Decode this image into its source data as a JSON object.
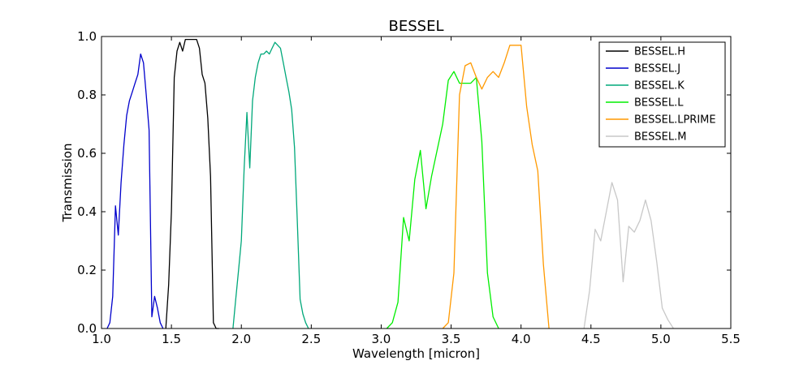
{
  "chart_data": {
    "type": "line",
    "title": "BESSEL",
    "xlabel": "Wavelength [micron]",
    "ylabel": "Transmission",
    "xlim": [
      1.0,
      5.5
    ],
    "ylim": [
      0.0,
      1.0
    ],
    "xticks": [
      1.0,
      1.5,
      2.0,
      2.5,
      3.0,
      3.5,
      4.0,
      4.5,
      5.0,
      5.5
    ],
    "xtick_labels": [
      "1.0",
      "1.5",
      "2.0",
      "2.5",
      "3.0",
      "3.5",
      "4.0",
      "4.5",
      "5.0",
      "5.5"
    ],
    "yticks": [
      0.0,
      0.2,
      0.4,
      0.6,
      0.8,
      1.0
    ],
    "ytick_labels": [
      "0.0",
      "0.2",
      "0.4",
      "0.6",
      "0.8",
      "1.0"
    ],
    "grid": false,
    "legend_position": "top-right",
    "series": [
      {
        "name": "BESSEL.H",
        "color": "#000000",
        "x": [
          1.46,
          1.48,
          1.5,
          1.52,
          1.54,
          1.56,
          1.58,
          1.6,
          1.62,
          1.64,
          1.66,
          1.68,
          1.7,
          1.72,
          1.74,
          1.76,
          1.78,
          1.8,
          1.82,
          1.84
        ],
        "y": [
          0.0,
          0.15,
          0.4,
          0.86,
          0.95,
          0.98,
          0.95,
          0.99,
          0.99,
          0.99,
          0.99,
          0.99,
          0.96,
          0.87,
          0.84,
          0.72,
          0.52,
          0.02,
          0.0,
          0.0
        ]
      },
      {
        "name": "BESSEL.J",
        "color": "#0000cc",
        "x": [
          1.04,
          1.06,
          1.08,
          1.1,
          1.12,
          1.14,
          1.16,
          1.18,
          1.2,
          1.22,
          1.24,
          1.26,
          1.28,
          1.3,
          1.32,
          1.34,
          1.36,
          1.38,
          1.4,
          1.42,
          1.44
        ],
        "y": [
          0.0,
          0.02,
          0.11,
          0.42,
          0.32,
          0.5,
          0.63,
          0.73,
          0.78,
          0.81,
          0.84,
          0.87,
          0.94,
          0.91,
          0.8,
          0.68,
          0.04,
          0.11,
          0.07,
          0.02,
          0.0
        ]
      },
      {
        "name": "BESSEL.K",
        "color": "#00a87a",
        "x": [
          1.94,
          1.96,
          1.98,
          2.0,
          2.02,
          2.04,
          2.06,
          2.08,
          2.1,
          2.12,
          2.14,
          2.16,
          2.18,
          2.2,
          2.22,
          2.24,
          2.26,
          2.28,
          2.3,
          2.32,
          2.34,
          2.36,
          2.38,
          2.4,
          2.42,
          2.44,
          2.46,
          2.48
        ],
        "y": [
          0.0,
          0.1,
          0.2,
          0.3,
          0.55,
          0.74,
          0.55,
          0.78,
          0.86,
          0.91,
          0.94,
          0.94,
          0.95,
          0.94,
          0.96,
          0.98,
          0.97,
          0.96,
          0.91,
          0.86,
          0.81,
          0.75,
          0.62,
          0.37,
          0.1,
          0.05,
          0.02,
          0.0
        ]
      },
      {
        "name": "BESSEL.L",
        "color": "#00ee00",
        "x": [
          3.04,
          3.08,
          3.12,
          3.16,
          3.2,
          3.24,
          3.28,
          3.32,
          3.36,
          3.4,
          3.44,
          3.48,
          3.52,
          3.56,
          3.6,
          3.64,
          3.68,
          3.72,
          3.76,
          3.8,
          3.84
        ],
        "y": [
          0.0,
          0.02,
          0.09,
          0.38,
          0.3,
          0.51,
          0.61,
          0.41,
          0.52,
          0.61,
          0.7,
          0.85,
          0.88,
          0.84,
          0.84,
          0.84,
          0.86,
          0.64,
          0.19,
          0.04,
          0.0
        ]
      },
      {
        "name": "BESSEL.LPRIME",
        "color": "#ff9900",
        "x": [
          3.44,
          3.48,
          3.52,
          3.56,
          3.6,
          3.64,
          3.68,
          3.72,
          3.76,
          3.8,
          3.84,
          3.88,
          3.92,
          3.96,
          4.0,
          4.04,
          4.08,
          4.12,
          4.16,
          4.2
        ],
        "y": [
          0.0,
          0.02,
          0.19,
          0.8,
          0.9,
          0.91,
          0.86,
          0.82,
          0.86,
          0.88,
          0.86,
          0.91,
          0.97,
          0.97,
          0.97,
          0.76,
          0.63,
          0.54,
          0.22,
          0.0
        ]
      },
      {
        "name": "BESSEL.M",
        "color": "#c8c8c8",
        "x": [
          4.45,
          4.49,
          4.53,
          4.57,
          4.61,
          4.65,
          4.69,
          4.73,
          4.77,
          4.81,
          4.85,
          4.89,
          4.93,
          4.97,
          5.01,
          5.05,
          5.09
        ],
        "y": [
          0.0,
          0.13,
          0.34,
          0.3,
          0.4,
          0.5,
          0.44,
          0.16,
          0.35,
          0.33,
          0.37,
          0.44,
          0.37,
          0.23,
          0.07,
          0.03,
          0.0
        ]
      }
    ]
  }
}
